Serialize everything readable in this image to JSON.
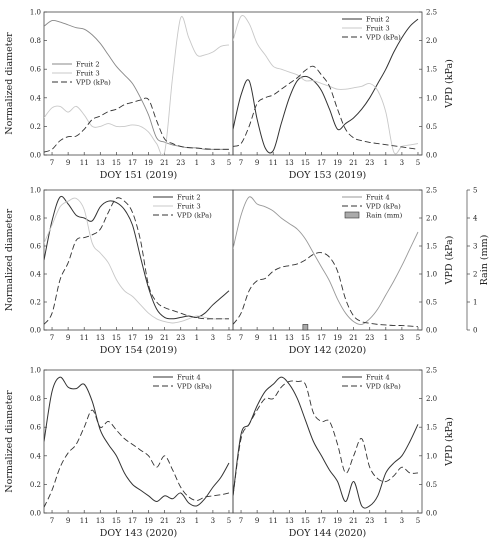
{
  "chart_data": [
    {
      "type": "line",
      "xlabel": "DOY 151 (2019)",
      "ylabel": "Normalized diameter",
      "y2label": "",
      "x_ticks": [
        "7",
        "9",
        "11",
        "13",
        "15",
        "17",
        "19",
        "21",
        "23",
        "1",
        "3",
        "5"
      ],
      "ylim": [
        0,
        1.0
      ],
      "y_ticks": [
        "0.0",
        "0.2",
        "0.4",
        "0.6",
        "0.8",
        "1.0"
      ],
      "y2lim": [
        0,
        2.5
      ],
      "y2_ticks": [],
      "legend_position": "left-middle",
      "series": [
        {
          "name": "Fruit 2",
          "color": "#888888",
          "dash": "solid",
          "width": 0.9,
          "axis": "left",
          "x": [
            6,
            7,
            8,
            9,
            10,
            11,
            12,
            13,
            14,
            15,
            16,
            17,
            18,
            19,
            20,
            21,
            22,
            23,
            24,
            25,
            26,
            27,
            28,
            29
          ],
          "y": [
            0.9,
            0.94,
            0.93,
            0.91,
            0.89,
            0.88,
            0.84,
            0.78,
            0.7,
            0.62,
            0.56,
            0.5,
            0.4,
            0.28,
            0.12,
            0.09,
            0.07,
            0.06,
            0.05,
            0.05,
            0.04,
            0.04,
            0.04,
            0.04
          ]
        },
        {
          "name": "Fruit 3",
          "color": "#c8c8c8",
          "dash": "solid",
          "width": 0.9,
          "axis": "left",
          "x": [
            6,
            7,
            8,
            9,
            10,
            11,
            12,
            13,
            14,
            15,
            16,
            17,
            18,
            19,
            20,
            21,
            22,
            23,
            24,
            25,
            26,
            27,
            28,
            29
          ],
          "y": [
            0.26,
            0.33,
            0.34,
            0.3,
            0.34,
            0.28,
            0.2,
            0.2,
            0.22,
            0.2,
            0.2,
            0.21,
            0.2,
            0.16,
            0.08,
            0.02,
            0.55,
            0.96,
            0.82,
            0.7,
            0.7,
            0.72,
            0.76,
            0.77
          ]
        },
        {
          "name": "VPD (kPa)",
          "color": "#333333",
          "dash": "long",
          "width": 0.9,
          "axis": "right",
          "x": [
            6,
            7,
            8,
            9,
            10,
            11,
            12,
            13,
            14,
            15,
            16,
            17,
            18,
            19,
            20,
            21,
            22,
            23,
            24,
            25,
            26,
            27,
            28,
            29
          ],
          "y": [
            0.05,
            0.1,
            0.25,
            0.32,
            0.33,
            0.45,
            0.62,
            0.68,
            0.76,
            0.8,
            0.88,
            0.92,
            0.96,
            0.97,
            0.6,
            0.28,
            0.2,
            0.15,
            0.13,
            0.12,
            0.11,
            0.1,
            0.1,
            0.1
          ]
        }
      ]
    },
    {
      "type": "line",
      "xlabel": "DOY 153 (2019)",
      "ylabel": "",
      "y2label": "VPD (kPa)",
      "x_ticks": [
        "7",
        "9",
        "11",
        "13",
        "15",
        "17",
        "19",
        "21",
        "23",
        "1",
        "3",
        "5"
      ],
      "ylim": [
        0,
        1.0
      ],
      "y_ticks": [],
      "y2lim": [
        0,
        2.5
      ],
      "y2_ticks": [
        "0.0",
        "0.5",
        "1.0",
        "1.5",
        "2.0",
        "2.5"
      ],
      "legend_position": "top-right",
      "series": [
        {
          "name": "Fruit 2",
          "color": "#333333",
          "dash": "solid",
          "width": 1.0,
          "axis": "left",
          "x": [
            6,
            7,
            8,
            9,
            10,
            11,
            12,
            13,
            14,
            15,
            16,
            17,
            18,
            19,
            20,
            21,
            22,
            23,
            24,
            25,
            26,
            27,
            28,
            29
          ],
          "y": [
            0.18,
            0.42,
            0.52,
            0.25,
            0.05,
            0.03,
            0.22,
            0.4,
            0.52,
            0.55,
            0.52,
            0.45,
            0.32,
            0.18,
            0.22,
            0.26,
            0.32,
            0.4,
            0.5,
            0.6,
            0.72,
            0.82,
            0.9,
            0.95
          ]
        },
        {
          "name": "Fruit 3",
          "color": "#c8c8c8",
          "dash": "solid",
          "width": 0.9,
          "axis": "left",
          "x": [
            6,
            7,
            8,
            9,
            10,
            11,
            12,
            13,
            14,
            15,
            16,
            17,
            18,
            19,
            20,
            21,
            22,
            23,
            24,
            25,
            26,
            27,
            28,
            29
          ],
          "y": [
            0.8,
            0.97,
            0.92,
            0.78,
            0.7,
            0.62,
            0.6,
            0.58,
            0.56,
            0.52,
            0.52,
            0.5,
            0.48,
            0.46,
            0.46,
            0.47,
            0.48,
            0.5,
            0.45,
            0.3,
            0.02,
            0.06,
            0.07,
            0.08
          ]
        },
        {
          "name": "VPD (kPa)",
          "color": "#333333",
          "dash": "long",
          "width": 0.9,
          "axis": "right",
          "x": [
            6,
            7,
            8,
            9,
            10,
            11,
            12,
            13,
            14,
            15,
            16,
            17,
            18,
            19,
            20,
            21,
            22,
            23,
            24,
            25,
            26,
            27,
            28,
            29
          ],
          "y": [
            0.15,
            0.2,
            0.5,
            0.9,
            1.0,
            1.05,
            1.15,
            1.25,
            1.35,
            1.48,
            1.55,
            1.4,
            1.2,
            0.8,
            0.45,
            0.3,
            0.25,
            0.22,
            0.2,
            0.18,
            0.16,
            0.14,
            0.12,
            0.1
          ]
        }
      ]
    },
    {
      "type": "line",
      "xlabel": "DOY 154 (2019)",
      "ylabel": "Normalized diameter",
      "y2label": "",
      "x_ticks": [
        "7",
        "9",
        "11",
        "13",
        "15",
        "17",
        "19",
        "21",
        "23",
        "1",
        "3",
        "5"
      ],
      "ylim": [
        0,
        1.0
      ],
      "y_ticks": [
        "0.0",
        "0.2",
        "0.4",
        "0.6",
        "0.8",
        "1.0"
      ],
      "y2lim": [
        0,
        2.5
      ],
      "y2_ticks": [],
      "legend_position": "top-right",
      "series": [
        {
          "name": "Fruit 2",
          "color": "#333333",
          "dash": "solid",
          "width": 1.0,
          "axis": "left",
          "x": [
            6,
            7,
            8,
            9,
            10,
            11,
            12,
            13,
            14,
            15,
            16,
            17,
            18,
            19,
            20,
            21,
            22,
            23,
            24,
            25,
            26,
            27,
            28,
            29
          ],
          "y": [
            0.5,
            0.78,
            0.95,
            0.9,
            0.82,
            0.8,
            0.78,
            0.88,
            0.92,
            0.91,
            0.86,
            0.75,
            0.52,
            0.3,
            0.15,
            0.09,
            0.08,
            0.09,
            0.1,
            0.09,
            0.12,
            0.18,
            0.23,
            0.28
          ]
        },
        {
          "name": "Fruit 3",
          "color": "#c8c8c8",
          "dash": "solid",
          "width": 0.9,
          "axis": "left",
          "x": [
            6,
            7,
            8,
            9,
            10,
            11,
            12,
            13,
            14,
            15,
            16,
            17,
            18,
            19,
            20,
            21,
            22,
            23,
            24,
            25,
            26,
            27,
            28,
            29
          ],
          "y": [
            0.62,
            0.75,
            0.88,
            0.92,
            0.94,
            0.86,
            0.62,
            0.55,
            0.48,
            0.36,
            0.28,
            0.24,
            0.18,
            0.12,
            0.08,
            0.06,
            0.05,
            0.06,
            0.08,
            0.1,
            0.09,
            0.08,
            0.08,
            0.08
          ]
        },
        {
          "name": "VPD (kPa)",
          "color": "#333333",
          "dash": "long",
          "width": 0.9,
          "axis": "right",
          "x": [
            6,
            7,
            8,
            9,
            10,
            11,
            12,
            13,
            14,
            15,
            16,
            17,
            18,
            19,
            20,
            21,
            22,
            23,
            24,
            25,
            26,
            27,
            28,
            29
          ],
          "y": [
            0.1,
            0.3,
            0.9,
            1.2,
            1.6,
            1.65,
            1.7,
            1.8,
            2.1,
            2.35,
            2.3,
            2.1,
            1.6,
            0.8,
            0.5,
            0.4,
            0.35,
            0.3,
            0.25,
            0.22,
            0.2,
            0.2,
            0.2,
            0.2
          ]
        }
      ]
    },
    {
      "type": "line",
      "xlabel": "DOY 142 (2020)",
      "ylabel": "",
      "y2label": "VPD (kPa)",
      "y3label": "Rain (mm)",
      "x_ticks": [
        "7",
        "9",
        "11",
        "13",
        "15",
        "17",
        "19",
        "21",
        "23",
        "1",
        "3",
        "5"
      ],
      "ylim": [
        0,
        1.0
      ],
      "y_ticks": [],
      "y2lim": [
        0,
        2.5
      ],
      "y2_ticks": [
        "0.0",
        "0.5",
        "1.0",
        "1.5",
        "2.0",
        "2.5"
      ],
      "y3lim": [
        0,
        5
      ],
      "y3_ticks": [
        "0",
        "1",
        "2",
        "3",
        "4",
        "5"
      ],
      "legend_position": "top-right",
      "series": [
        {
          "name": "Fruit 4",
          "color": "#999999",
          "dash": "solid",
          "width": 0.9,
          "axis": "left",
          "x": [
            6,
            7,
            8,
            9,
            10,
            11,
            12,
            13,
            14,
            15,
            16,
            17,
            18,
            19,
            20,
            21,
            22,
            23,
            24,
            25,
            26,
            27,
            28,
            29
          ],
          "y": [
            0.58,
            0.82,
            0.95,
            0.9,
            0.88,
            0.85,
            0.8,
            0.76,
            0.72,
            0.65,
            0.55,
            0.45,
            0.35,
            0.22,
            0.12,
            0.06,
            0.04,
            0.08,
            0.15,
            0.25,
            0.35,
            0.46,
            0.58,
            0.7
          ]
        },
        {
          "name": "VPD (kPa)",
          "color": "#333333",
          "dash": "long",
          "width": 0.9,
          "axis": "right",
          "x": [
            6,
            7,
            8,
            9,
            10,
            11,
            12,
            13,
            14,
            15,
            16,
            17,
            18,
            19,
            20,
            21,
            22,
            23,
            24,
            25,
            26,
            27,
            28,
            29
          ],
          "y": [
            0.1,
            0.3,
            0.7,
            0.88,
            0.92,
            1.05,
            1.12,
            1.15,
            1.18,
            1.25,
            1.35,
            1.38,
            1.3,
            1.05,
            0.55,
            0.25,
            0.15,
            0.12,
            0.1,
            0.09,
            0.08,
            0.08,
            0.07,
            0.06
          ]
        }
      ],
      "bars": [
        {
          "name": "Rain (mm)",
          "color": "#aaaaaa",
          "axis": "right2",
          "x": [
            15
          ],
          "y": [
            0.2
          ]
        }
      ]
    },
    {
      "type": "line",
      "xlabel": "DOY 143 (2020)",
      "ylabel": "Normalized diameter",
      "y2label": "",
      "x_ticks": [
        "7",
        "9",
        "11",
        "13",
        "15",
        "17",
        "19",
        "21",
        "23",
        "1",
        "3",
        "5"
      ],
      "ylim": [
        0,
        1.0
      ],
      "y_ticks": [
        "0.0",
        "0.2",
        "0.4",
        "0.6",
        "0.8",
        "1.0"
      ],
      "y2lim": [
        0,
        2.5
      ],
      "y2_ticks": [],
      "legend_position": "top-right",
      "series": [
        {
          "name": "Fruit 4",
          "color": "#333333",
          "dash": "solid",
          "width": 1.0,
          "axis": "left",
          "x": [
            6,
            7,
            8,
            9,
            10,
            11,
            12,
            13,
            14,
            15,
            16,
            17,
            18,
            19,
            20,
            21,
            22,
            23,
            24,
            25,
            26,
            27,
            28,
            29
          ],
          "y": [
            0.5,
            0.85,
            0.95,
            0.88,
            0.87,
            0.9,
            0.78,
            0.58,
            0.48,
            0.4,
            0.28,
            0.2,
            0.16,
            0.12,
            0.08,
            0.12,
            0.1,
            0.14,
            0.07,
            0.05,
            0.1,
            0.18,
            0.25,
            0.35
          ]
        },
        {
          "name": "VPD (kPa)",
          "color": "#333333",
          "dash": "long",
          "width": 0.9,
          "axis": "right",
          "x": [
            6,
            7,
            8,
            9,
            10,
            11,
            12,
            13,
            14,
            15,
            16,
            17,
            18,
            19,
            20,
            21,
            22,
            23,
            24,
            25,
            26,
            27,
            28,
            29
          ],
          "y": [
            0.1,
            0.4,
            0.8,
            1.05,
            1.2,
            1.5,
            1.8,
            1.5,
            1.6,
            1.45,
            1.3,
            1.2,
            1.1,
            1.0,
            0.8,
            1.0,
            0.75,
            0.45,
            0.28,
            0.22,
            0.28,
            0.3,
            0.32,
            0.35
          ]
        }
      ]
    },
    {
      "type": "line",
      "xlabel": "DOY 144 (2020)",
      "ylabel": "",
      "y2label": "VPD (kPa)",
      "x_ticks": [
        "7",
        "9",
        "11",
        "13",
        "15",
        "17",
        "19",
        "21",
        "23",
        "1",
        "3",
        "5"
      ],
      "ylim": [
        0,
        1.0
      ],
      "y_ticks": [],
      "y2lim": [
        0,
        2.5
      ],
      "y2_ticks": [
        "0.0",
        "0.5",
        "1.0",
        "1.5",
        "2.0",
        "2.5"
      ],
      "legend_position": "top-right",
      "series": [
        {
          "name": "Fruit 4",
          "color": "#333333",
          "dash": "solid",
          "width": 1.0,
          "axis": "left",
          "x": [
            6,
            7,
            8,
            9,
            10,
            11,
            12,
            13,
            14,
            15,
            16,
            17,
            18,
            19,
            20,
            21,
            22,
            23,
            24,
            25,
            26,
            27,
            28,
            29
          ],
          "y": [
            0.12,
            0.55,
            0.62,
            0.75,
            0.85,
            0.9,
            0.95,
            0.9,
            0.8,
            0.65,
            0.5,
            0.4,
            0.3,
            0.22,
            0.08,
            0.22,
            0.05,
            0.05,
            0.12,
            0.28,
            0.35,
            0.4,
            0.5,
            0.62
          ]
        },
        {
          "name": "VPD (kPa)",
          "color": "#333333",
          "dash": "long",
          "width": 0.9,
          "axis": "right",
          "x": [
            6,
            7,
            8,
            9,
            10,
            11,
            12,
            13,
            14,
            15,
            16,
            17,
            18,
            19,
            20,
            21,
            22,
            23,
            24,
            25,
            26,
            27,
            28,
            29
          ],
          "y": [
            0.3,
            1.3,
            1.55,
            1.8,
            2.0,
            2.0,
            2.2,
            2.3,
            2.3,
            2.25,
            1.75,
            1.6,
            1.6,
            1.2,
            0.7,
            1.0,
            1.3,
            0.8,
            0.6,
            0.55,
            0.65,
            0.8,
            0.7,
            0.7
          ]
        }
      ]
    }
  ]
}
